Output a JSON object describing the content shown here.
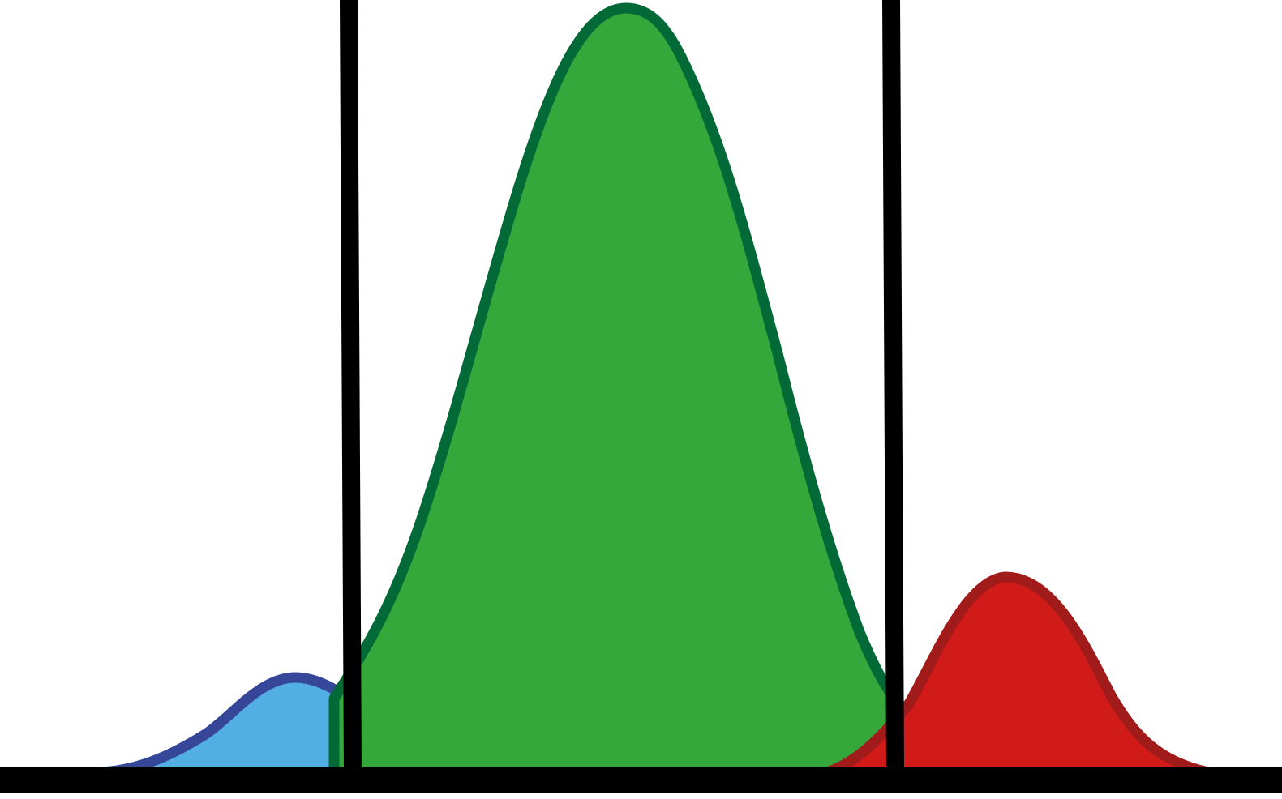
{
  "diagram": {
    "kind": "overlapping-distributions",
    "labels": [],
    "colors": {
      "background": "#ffffff",
      "axis": "#000000",
      "threshold": "#000000"
    },
    "distributions": [
      {
        "id": "left",
        "fill": "#52afe3",
        "stroke": "#36479a",
        "relative_height": 0.12,
        "layer": 1
      },
      {
        "id": "center",
        "fill": "#34a83b",
        "stroke": "#036a37",
        "relative_height": 1.0,
        "layer": 2
      },
      {
        "id": "right",
        "fill": "#d11b19",
        "stroke": "#a11b1b",
        "relative_height": 0.25,
        "layer": 3
      }
    ],
    "threshold_count": 2
  }
}
